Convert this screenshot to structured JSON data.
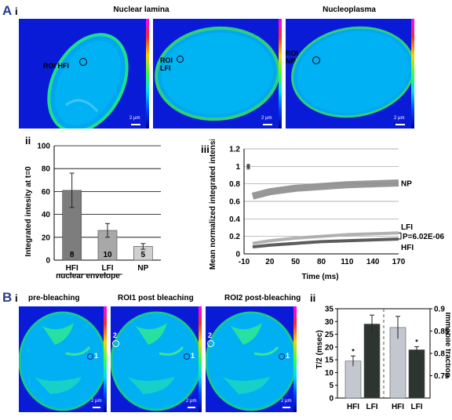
{
  "panel_a": {
    "letter": "A",
    "roman_i": "i",
    "roman_ii": "ii",
    "roman_iii": "iii",
    "image_headers": [
      "Nuclear lamina",
      "Nucleoplasma"
    ],
    "roi_labels": [
      "ROI HFI",
      "ROI LFI",
      "ROI NP"
    ],
    "scale_label": "2 µm"
  },
  "panel_b": {
    "letter": "B",
    "roman_i": "i",
    "roman_ii": "ii",
    "image_headers": [
      "pre-bleaching",
      "ROI1 post bleaching",
      "ROI2 post-bleaching"
    ],
    "roi_numbers": [
      "1",
      "2"
    ],
    "scale_label": "2 µm"
  },
  "chart_data": [
    {
      "type": "bar",
      "categories": [
        "HFI",
        "LFI",
        "NP"
      ],
      "values": [
        61,
        26,
        12
      ],
      "errors": [
        15,
        6,
        2.5
      ],
      "n_labels": [
        "8",
        "10",
        "5"
      ],
      "bar_colors": [
        "#7d7d7d",
        "#a8a8a8",
        "#cfcfcf"
      ],
      "xlabel": "nuclear envelope",
      "ylabel": "Integrated intesity at t=0",
      "ylim": [
        0,
        100
      ],
      "yticks": [
        0,
        20,
        40,
        60,
        80,
        100
      ],
      "grid": true
    },
    {
      "type": "line",
      "xlabel": "Time (ms)",
      "ylabel": "Mean normalized integrated intensity",
      "xlim": [
        -10,
        170
      ],
      "ylim": [
        0,
        1.2
      ],
      "xtick_labels": [
        "-10",
        "20",
        "50",
        "80",
        "110",
        "140",
        "170"
      ],
      "ytick_labels": [
        "0",
        "0.2",
        "0.4",
        "0.6",
        "0.8",
        "1",
        "1.2"
      ],
      "grid": true,
      "annotation": "P=6.02E-06",
      "series": [
        {
          "name": "NP",
          "color": "#8c8c8c",
          "prebleach": 0.99,
          "x": [
            0,
            20,
            50,
            80,
            110,
            140,
            170
          ],
          "y": [
            0.66,
            0.71,
            0.75,
            0.77,
            0.79,
            0.8,
            0.81
          ]
        },
        {
          "name": "LFI",
          "color": "#a8a8a8",
          "prebleach": 1.0,
          "x": [
            0,
            20,
            50,
            80,
            110,
            140,
            170
          ],
          "y": [
            0.12,
            0.15,
            0.18,
            0.2,
            0.22,
            0.23,
            0.24
          ]
        },
        {
          "name": "HFI",
          "color": "#4a4a4a",
          "prebleach": 1.0,
          "x": [
            0,
            20,
            50,
            80,
            110,
            140,
            170
          ],
          "y": [
            0.08,
            0.1,
            0.12,
            0.14,
            0.15,
            0.16,
            0.17
          ]
        }
      ]
    },
    {
      "type": "bar",
      "categories": [
        "HFI",
        "LFI",
        "HFI",
        "LFI"
      ],
      "groups": [
        {
          "ylabel": "T/2 (msec)",
          "axis": "left",
          "ylim": [
            0,
            35
          ],
          "yticks": [
            0,
            5,
            10,
            15,
            20,
            25,
            30,
            35
          ],
          "values": [
            14.5,
            29
          ],
          "errors": [
            2,
            3.5
          ],
          "significant": [
            true,
            false
          ]
        },
        {
          "ylabel": "Immobile fraction",
          "axis": "right",
          "ylim": [
            0.7,
            0.9
          ],
          "yticks": [
            0.75,
            0.8,
            0.85,
            0.9
          ],
          "values": [
            0.858,
            0.808
          ],
          "errors": [
            0.025,
            0.007
          ],
          "significant": [
            false,
            true
          ]
        }
      ],
      "bar_colors": [
        "#c3c7cf",
        "#2d3530",
        "#c3c7cf",
        "#2d3530"
      ],
      "marker": "*"
    }
  ]
}
